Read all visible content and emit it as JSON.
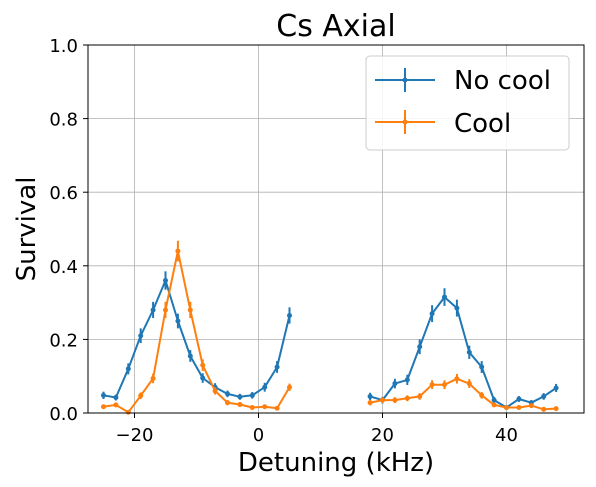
{
  "chart_data": {
    "type": "line",
    "title": "Cs Axial",
    "xlabel": "Detuning (kHz)",
    "ylabel": "Survival",
    "xlim": [
      -27.5,
      52.5
    ],
    "ylim": [
      0,
      1.0
    ],
    "xticks": [
      -20,
      0,
      20,
      40
    ],
    "yticks": [
      0.0,
      0.2,
      0.4,
      0.6,
      0.8,
      1.0
    ],
    "xtick_labels": [
      "−20",
      "0",
      "20",
      "40"
    ],
    "ytick_labels": [
      "0.0",
      "0.2",
      "0.4",
      "0.6",
      "0.8",
      "1.0"
    ],
    "grid": true,
    "legend_position": "top-right",
    "series": [
      {
        "name": "No cool",
        "color": "#1f77b4",
        "segments": [
          {
            "x": [
              -25,
              -23,
              -21,
              -19,
              -17,
              -15,
              -13,
              -11,
              -9,
              -7,
              -5,
              -3,
              -1,
              1,
              3,
              5
            ],
            "y": [
              0.048,
              0.042,
              0.12,
              0.21,
              0.28,
              0.36,
              0.25,
              0.155,
              0.095,
              0.07,
              0.052,
              0.044,
              0.048,
              0.07,
              0.125,
              0.265
            ],
            "err": [
              0.01,
              0.008,
              0.015,
              0.02,
              0.022,
              0.025,
              0.02,
              0.016,
              0.013,
              0.011,
              0.009,
              0.008,
              0.009,
              0.012,
              0.016,
              0.022
            ]
          },
          {
            "x": [
              18,
              20,
              22,
              24,
              26,
              28,
              30,
              32,
              34,
              36,
              38,
              40,
              42,
              44,
              46,
              48
            ],
            "y": [
              0.045,
              0.035,
              0.08,
              0.09,
              0.18,
              0.27,
              0.315,
              0.285,
              0.165,
              0.125,
              0.035,
              0.015,
              0.038,
              0.028,
              0.045,
              0.068
            ],
            "err": [
              0.01,
              0.009,
              0.013,
              0.014,
              0.02,
              0.023,
              0.024,
              0.023,
              0.018,
              0.016,
              0.009,
              0.006,
              0.008,
              0.007,
              0.009,
              0.011
            ]
          }
        ]
      },
      {
        "name": "Cool",
        "color": "#ff7f0e",
        "segments": [
          {
            "x": [
              -25,
              -23,
              -21,
              -19,
              -17,
              -15,
              -13,
              -11,
              -9,
              -7,
              -5,
              -3,
              -1,
              1,
              3,
              5
            ],
            "y": [
              0.017,
              0.022,
              0.002,
              0.047,
              0.094,
              0.28,
              0.44,
              0.28,
              0.13,
              0.06,
              0.028,
              0.023,
              0.015,
              0.017,
              0.013,
              0.07
            ],
            "err": [
              0.005,
              0.006,
              0.003,
              0.009,
              0.013,
              0.022,
              0.028,
              0.022,
              0.016,
              0.01,
              0.007,
              0.006,
              0.005,
              0.005,
              0.005,
              0.01
            ]
          },
          {
            "x": [
              18,
              20,
              22,
              24,
              26,
              28,
              30,
              32,
              34,
              36,
              38,
              40,
              42,
              44,
              46,
              48
            ],
            "y": [
              0.028,
              0.035,
              0.035,
              0.04,
              0.045,
              0.077,
              0.077,
              0.093,
              0.08,
              0.048,
              0.022,
              0.015,
              0.015,
              0.02,
              0.01,
              0.012
            ],
            "err": [
              0.007,
              0.008,
              0.008,
              0.008,
              0.009,
              0.012,
              0.012,
              0.013,
              0.012,
              0.009,
              0.006,
              0.005,
              0.005,
              0.006,
              0.004,
              0.005
            ]
          }
        ]
      }
    ]
  }
}
